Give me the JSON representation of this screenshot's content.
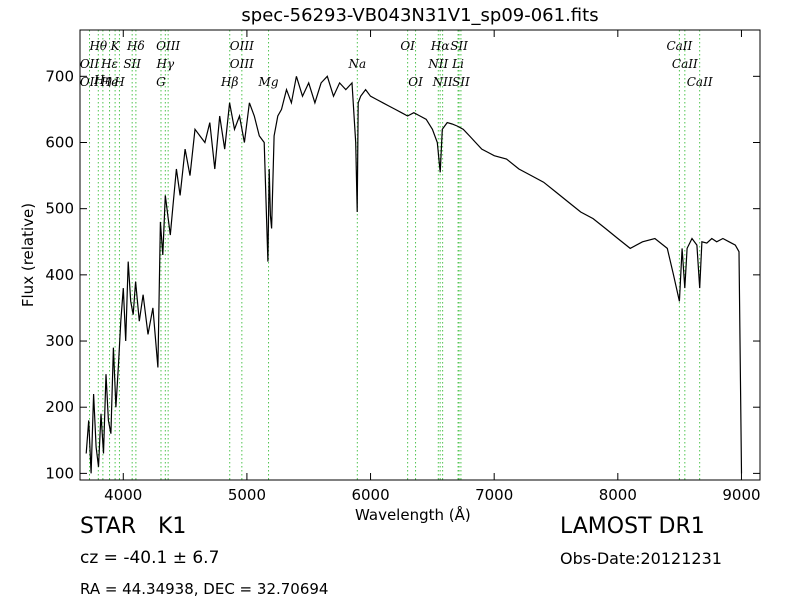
{
  "header": {
    "title": "spec-56293-VB043N31V1_sp09-061.fits"
  },
  "info": {
    "object_class": "STAR",
    "object_subclass": "K1",
    "redshift_text": "cz = -40.1 ± 6.7",
    "coords_text": "RA = 44.34938, DEC = 32.70694",
    "survey": "LAMOST DR1",
    "obs_date": "Obs-Date:20121231"
  },
  "chart_data": {
    "type": "line",
    "title": "spec-56293-VB043N31V1_sp09-061.fits",
    "xlabel": "Wavelength (Å)",
    "ylabel": "Flux (relative)",
    "xlim": [
      3650,
      9150
    ],
    "ylim": [
      90,
      770
    ],
    "xticks": [
      4000,
      5000,
      6000,
      7000,
      8000,
      9000
    ],
    "yticks": [
      100,
      200,
      300,
      400,
      500,
      600,
      700
    ],
    "line_color": "#000000",
    "marker_color": "#4fc44f",
    "series": [
      {
        "x": [
          3700,
          3720,
          3740,
          3760,
          3780,
          3800,
          3820,
          3840,
          3860,
          3880,
          3900,
          3920,
          3940,
          3960,
          3980,
          4000,
          4020,
          4040,
          4060,
          4080,
          4100,
          4130,
          4160,
          4200,
          4240,
          4280,
          4300,
          4320,
          4340,
          4360,
          4380,
          4400,
          4430,
          4460,
          4500,
          4540,
          4580,
          4620,
          4660,
          4700,
          4740,
          4780,
          4820,
          4860,
          4900,
          4940,
          4980,
          5020,
          5060,
          5100,
          5140,
          5170,
          5180,
          5190,
          5200,
          5220,
          5250,
          5280,
          5320,
          5360,
          5400,
          5450,
          5500,
          5550,
          5600,
          5650,
          5700,
          5750,
          5800,
          5850,
          5880,
          5892,
          5900,
          5920,
          5960,
          6000,
          6050,
          6100,
          6150,
          6200,
          6250,
          6300,
          6350,
          6400,
          6450,
          6500,
          6540,
          6563,
          6580,
          6620,
          6660,
          6700,
          6750,
          6800,
          6850,
          6900,
          6950,
          7000,
          7100,
          7200,
          7300,
          7400,
          7500,
          7600,
          7700,
          7800,
          7900,
          8000,
          8100,
          8200,
          8300,
          8400,
          8450,
          8498,
          8520,
          8542,
          8560,
          8600,
          8640,
          8662,
          8680,
          8720,
          8760,
          8800,
          8850,
          8900,
          8950,
          8980,
          9000
        ],
        "y": [
          130,
          180,
          100,
          220,
          140,
          110,
          190,
          130,
          250,
          180,
          160,
          290,
          200,
          260,
          330,
          380,
          300,
          420,
          360,
          340,
          390,
          330,
          370,
          310,
          350,
          260,
          480,
          430,
          520,
          490,
          460,
          500,
          560,
          520,
          590,
          550,
          620,
          610,
          600,
          630,
          560,
          640,
          590,
          660,
          620,
          640,
          600,
          660,
          640,
          610,
          600,
          420,
          560,
          490,
          470,
          610,
          640,
          650,
          680,
          660,
          700,
          670,
          690,
          660,
          690,
          700,
          670,
          690,
          680,
          690,
          600,
          495,
          660,
          670,
          680,
          670,
          665,
          660,
          655,
          650,
          645,
          640,
          645,
          640,
          635,
          620,
          600,
          555,
          620,
          630,
          628,
          625,
          620,
          610,
          600,
          590,
          585,
          580,
          575,
          560,
          550,
          540,
          525,
          510,
          495,
          485,
          470,
          455,
          440,
          450,
          455,
          440,
          400,
          360,
          440,
          380,
          440,
          455,
          445,
          380,
          450,
          448,
          455,
          450,
          455,
          450,
          445,
          435,
          100
        ]
      }
    ],
    "line_markers": [
      {
        "label": "Hθ",
        "x": 3798,
        "row": 0
      },
      {
        "label": "K",
        "x": 3934,
        "row": 0
      },
      {
        "label": "Hδ",
        "x": 4102,
        "row": 0
      },
      {
        "label": "OIII",
        "x": 4363,
        "row": 0
      },
      {
        "label": "OIII",
        "x": 4959,
        "row": 0
      },
      {
        "label": "OI",
        "x": 6300,
        "row": 0
      },
      {
        "label": "Hα",
        "x": 6563,
        "row": 0
      },
      {
        "label": "SII",
        "x": 6716,
        "row": 0
      },
      {
        "label": "CaII",
        "x": 8498,
        "row": 0
      },
      {
        "label": "OII",
        "x": 3727,
        "row": 1
      },
      {
        "label": "Hε",
        "x": 3889,
        "row": 1
      },
      {
        "label": "SII",
        "x": 4072,
        "row": 1
      },
      {
        "label": "Hγ",
        "x": 4340,
        "row": 1
      },
      {
        "label": "OIII",
        "x": 4959,
        "row": 1
      },
      {
        "label": "Na",
        "x": 5893,
        "row": 1
      },
      {
        "label": "NII",
        "x": 6548,
        "row": 1
      },
      {
        "label": "Li",
        "x": 6708,
        "row": 1
      },
      {
        "label": "CaII",
        "x": 8542,
        "row": 1
      },
      {
        "label": "Hη",
        "x": 3835,
        "row": 2
      },
      {
        "label": "OII",
        "x": 3727,
        "row": 3
      },
      {
        "label": "He",
        "x": 3889,
        "row": 3
      },
      {
        "label": "H",
        "x": 3969,
        "row": 3
      },
      {
        "label": "G",
        "x": 4305,
        "row": 3
      },
      {
        "label": "Hβ",
        "x": 4861,
        "row": 3
      },
      {
        "label": "Mg",
        "x": 5175,
        "row": 3
      },
      {
        "label": "OI",
        "x": 6364,
        "row": 3
      },
      {
        "label": "NII",
        "x": 6583,
        "row": 3
      },
      {
        "label": "SII",
        "x": 6731,
        "row": 3
      },
      {
        "label": "CaII",
        "x": 8662,
        "row": 3
      }
    ]
  }
}
